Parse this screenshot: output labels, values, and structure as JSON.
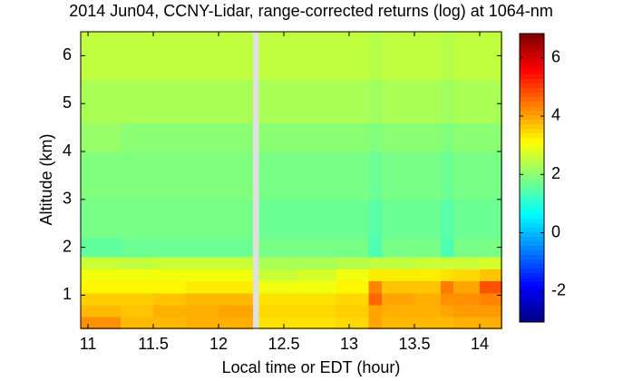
{
  "chart_data": {
    "type": "heatmap",
    "title": "2014 Jun04, CCNY-Lidar, range-corrected returns (log) at 1064-nm",
    "x_label": "Local time or EDT (hour)",
    "y_label": "Altitude (km)",
    "colormap": "jet",
    "x": [
      10.94,
      11.25,
      11.5,
      11.75,
      12.0,
      12.26,
      12.31,
      12.6,
      12.9,
      13.15,
      13.25,
      13.5,
      13.7,
      13.8,
      14.0,
      14.17
    ],
    "y": [
      0.3,
      0.55,
      0.8,
      1.05,
      1.3,
      1.55,
      1.8,
      2.2,
      3.0,
      4.0,
      4.6,
      5.5,
      6.5
    ],
    "values": [
      [
        4.2,
        3.8,
        3.8,
        3.9,
        3.9,
        null,
        3.4,
        3.4,
        3.5,
        4.0,
        3.8,
        3.8,
        3.8,
        3.9,
        3.9
      ],
      [
        3.8,
        3.7,
        3.9,
        3.9,
        4.0,
        null,
        3.5,
        3.5,
        3.6,
        4.0,
        3.9,
        3.9,
        4.0,
        4.1,
        4.1
      ],
      [
        3.6,
        3.6,
        3.7,
        3.8,
        3.8,
        null,
        3.4,
        3.4,
        3.5,
        4.6,
        4.0,
        3.9,
        4.2,
        4.2,
        4.3
      ],
      [
        3.2,
        3.2,
        3.2,
        3.3,
        3.3,
        null,
        3.0,
        3.0,
        3.2,
        4.3,
        3.7,
        3.7,
        4.4,
        4.0,
        4.8
      ],
      [
        3.0,
        3.0,
        3.0,
        3.0,
        3.0,
        null,
        2.6,
        2.7,
        3.0,
        3.3,
        3.3,
        3.3,
        3.4,
        3.5,
        3.7
      ],
      [
        2.6,
        2.5,
        2.6,
        2.6,
        2.6,
        null,
        2.3,
        2.3,
        2.4,
        2.5,
        2.5,
        2.6,
        2.6,
        2.6,
        2.7
      ],
      [
        1.6,
        1.7,
        1.7,
        1.7,
        1.7,
        null,
        1.8,
        1.8,
        1.8,
        1.4,
        1.8,
        1.8,
        1.4,
        1.8,
        1.8
      ],
      [
        1.8,
        1.8,
        1.8,
        1.8,
        1.8,
        null,
        1.7,
        1.7,
        1.7,
        1.5,
        1.7,
        1.7,
        1.5,
        1.7,
        1.7
      ],
      [
        1.9,
        1.9,
        1.9,
        1.9,
        1.9,
        null,
        1.8,
        1.8,
        1.8,
        1.7,
        1.8,
        1.8,
        1.7,
        1.8,
        1.8
      ],
      [
        2.1,
        2.0,
        2.0,
        2.0,
        2.0,
        null,
        2.0,
        2.0,
        2.0,
        1.9,
        2.0,
        2.0,
        1.9,
        2.0,
        2.0
      ],
      [
        2.3,
        2.3,
        2.3,
        2.3,
        2.3,
        null,
        2.3,
        2.3,
        2.3,
        2.2,
        2.3,
        2.3,
        2.2,
        2.3,
        2.3
      ],
      [
        2.5,
        2.5,
        2.5,
        2.5,
        2.5,
        null,
        2.5,
        2.5,
        2.5,
        2.4,
        2.5,
        2.5,
        2.4,
        2.5,
        2.5
      ]
    ],
    "xlim": [
      10.944,
      14.167
    ],
    "xticks": [
      11,
      11.5,
      12,
      12.5,
      13,
      13.5,
      14
    ],
    "ylim": [
      0.307,
      6.5
    ],
    "yticks": [
      1,
      2,
      3,
      4,
      5,
      6
    ],
    "clim": [
      -3.06,
      6.83
    ],
    "cticks": [
      -2,
      0,
      2,
      4,
      6
    ]
  }
}
